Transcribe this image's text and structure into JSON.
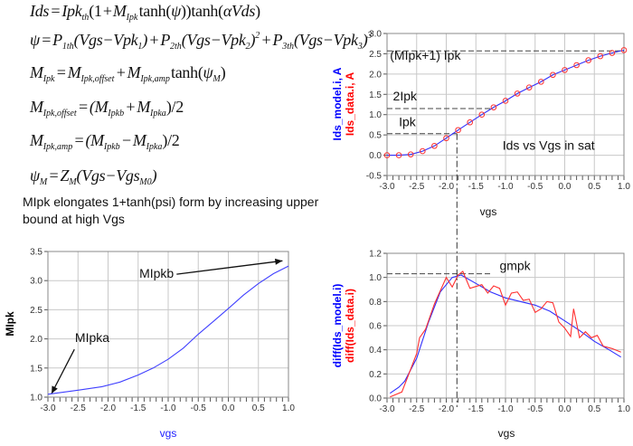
{
  "equations": [
    [
      {
        "t": "Ids"
      },
      {
        "t": " = "
      },
      {
        "t": "Ipk"
      },
      {
        "sub": "th"
      },
      {
        "t": "(1 + ",
        "rm": true
      },
      {
        "t": "M"
      },
      {
        "sub": "Ipk"
      },
      {
        "t": " tanh(",
        "rm": true
      },
      {
        "t": "ψ"
      },
      {
        "t": "))tanh(",
        "rm": true
      },
      {
        "t": "αVds"
      },
      {
        "t": ")",
        "rm": true
      }
    ],
    [
      {
        "t": "ψ"
      },
      {
        "t": " = "
      },
      {
        "t": "P"
      },
      {
        "sub": "1th"
      },
      {
        "t": "(Vgs−Vpk"
      },
      {
        "sub": "1"
      },
      {
        "t": ") + "
      },
      {
        "t": "P"
      },
      {
        "sub": "2th"
      },
      {
        "t": "(Vgs−Vpk"
      },
      {
        "sub": "2"
      },
      {
        "t": ")"
      },
      {
        "sup": "2"
      },
      {
        "t": " + "
      },
      {
        "t": "P"
      },
      {
        "sub": "3th"
      },
      {
        "t": "(Vgs−Vpk"
      },
      {
        "sub": "3"
      },
      {
        "t": ")"
      },
      {
        "sup": "3"
      }
    ],
    [
      {
        "t": "M"
      },
      {
        "sub": "Ipk"
      },
      {
        "t": " = "
      },
      {
        "t": "M"
      },
      {
        "sub": "Ipk,offset"
      },
      {
        "t": " + "
      },
      {
        "t": "M"
      },
      {
        "sub": "Ipk,amp"
      },
      {
        "t": " tanh(",
        "rm": true
      },
      {
        "t": "ψ"
      },
      {
        "sub": "M"
      },
      {
        "t": ")",
        "rm": true
      }
    ],
    [
      {
        "t": "M"
      },
      {
        "sub": "Ipk,offset"
      },
      {
        "t": " = ("
      },
      {
        "t": "M"
      },
      {
        "sub": "Ipkb"
      },
      {
        "t": " + "
      },
      {
        "t": "M"
      },
      {
        "sub": "Ipka"
      },
      {
        "t": ")/2",
        "rm": true
      }
    ],
    [
      {
        "t": "M"
      },
      {
        "sub": "Ipk,amp"
      },
      {
        "t": " = ("
      },
      {
        "t": "M"
      },
      {
        "sub": "Ipkb"
      },
      {
        "t": " − "
      },
      {
        "t": "M"
      },
      {
        "sub": "Ipka"
      },
      {
        "t": ")/2",
        "rm": true
      }
    ],
    [
      {
        "t": "ψ"
      },
      {
        "sub": "M"
      },
      {
        "t": " = "
      },
      {
        "t": "Z"
      },
      {
        "sub": "M"
      },
      {
        "t": "(Vgs−Vgs"
      },
      {
        "sub": "M0"
      },
      {
        "t": ")"
      }
    ]
  ],
  "caption": "MIpk elongates 1+tanh(psi) form by increasing upper bound at high Vgs",
  "colors": {
    "model": "#3030ff",
    "data": "#ff2020",
    "grid": "#c8c8c8",
    "axis": "#555555"
  },
  "chart_data": [
    {
      "id": "ids",
      "type": "line",
      "title": "Ids vs Vgs in sat",
      "xlabel": "vgs",
      "ylabels": [
        {
          "text": "Ids_model.i, A",
          "color": "#0000ff"
        },
        {
          "text": "Ids_data.i, A",
          "color": "#ff0000"
        }
      ],
      "xlim": [
        -3.0,
        1.0
      ],
      "ylim": [
        -0.5,
        3.0
      ],
      "xstep": 0.5,
      "ystep": 0.5,
      "grid": true,
      "xticks": [
        "-3.0",
        "-2.5",
        "-2.0",
        "-1.5",
        "-1.0",
        "-0.5",
        "0.0",
        "0.5",
        "1.0"
      ],
      "yticks": [
        "-0.5",
        "0.0",
        "0.5",
        "1.0",
        "1.5",
        "2.0",
        "2.5",
        "3.0"
      ],
      "x": [
        -3.0,
        -2.8,
        -2.6,
        -2.4,
        -2.2,
        -2.0,
        -1.8,
        -1.6,
        -1.4,
        -1.2,
        -1.0,
        -0.8,
        -0.6,
        -0.4,
        -0.2,
        0.0,
        0.2,
        0.4,
        0.6,
        0.8,
        1.0
      ],
      "series": [
        {
          "name": "Ids_model.i",
          "style": "line",
          "color": "#3030ff",
          "values": [
            0,
            0,
            0.02,
            0.1,
            0.23,
            0.42,
            0.62,
            0.81,
            1.0,
            1.18,
            1.34,
            1.52,
            1.67,
            1.81,
            1.98,
            2.1,
            2.22,
            2.34,
            2.44,
            2.52,
            2.59
          ]
        },
        {
          "name": "Ids_data.i",
          "style": "markers",
          "color": "#ff3030",
          "values": [
            0,
            0,
            0.02,
            0.1,
            0.23,
            0.42,
            0.62,
            0.81,
            1.0,
            1.18,
            1.34,
            1.52,
            1.67,
            1.81,
            1.98,
            2.1,
            2.22,
            2.34,
            2.44,
            2.52,
            2.59
          ]
        }
      ],
      "annotations": [
        {
          "text": "(MIpk+1) Ipk",
          "x": -2.95,
          "y": 2.35,
          "line": {
            "y": 2.57,
            "x0": -3.0,
            "x1": 1.0
          }
        },
        {
          "text": "2Ipk",
          "x": -2.9,
          "y": 1.35,
          "line": {
            "y": 1.15,
            "x0": -3.0,
            "x1": -1.25
          }
        },
        {
          "text": "Ipk",
          "x": -2.8,
          "y": 0.72,
          "line": {
            "y": 0.53,
            "x0": -3.0,
            "x1": -1.82
          }
        }
      ]
    },
    {
      "id": "gm",
      "type": "line",
      "xlabel": "vgs",
      "ylabels": [
        {
          "text": "diff(Ids_model.i)",
          "color": "#0000ff"
        },
        {
          "text": "diff(Ids_data.i)",
          "color": "#ff0000"
        }
      ],
      "xlim": [
        -3.0,
        1.0
      ],
      "ylim": [
        0.0,
        1.2
      ],
      "grid": true,
      "xticks": [
        "-3.0",
        "-2.5",
        "-2.0",
        "-1.5",
        "-1.0",
        "-0.5",
        "0.0",
        "0.5",
        "1.0"
      ],
      "yticks": [
        "0.0",
        "0.2",
        "0.4",
        "0.6",
        "0.8",
        "1.0",
        "1.2"
      ],
      "series": [
        {
          "name": "diff(Ids_model.i)",
          "color": "#3030ff",
          "x": [
            -2.95,
            -2.8,
            -2.7,
            -2.5,
            -2.3,
            -2.1,
            -1.9,
            -1.75,
            -1.5,
            -1.25,
            -1.0,
            -0.5,
            -0.25,
            0.0,
            0.25,
            0.5,
            0.75,
            0.95
          ],
          "values": [
            0.04,
            0.09,
            0.14,
            0.33,
            0.63,
            0.88,
            1.0,
            1.02,
            0.95,
            0.88,
            0.83,
            0.77,
            0.72,
            0.64,
            0.56,
            0.47,
            0.4,
            0.34
          ]
        },
        {
          "name": "diff(Ids_data.i)",
          "color": "#ff3030",
          "x": [
            -2.95,
            -2.75,
            -2.6,
            -2.5,
            -2.45,
            -2.35,
            -2.2,
            -2.0,
            -1.9,
            -1.8,
            -1.72,
            -1.6,
            -1.4,
            -1.3,
            -1.2,
            -1.1,
            -1.0,
            -0.9,
            -0.8,
            -0.7,
            -0.6,
            -0.5,
            -0.4,
            -0.3,
            -0.2,
            -0.1,
            0.0,
            0.1,
            0.15,
            0.25,
            0.35,
            0.45,
            0.55,
            0.65,
            0.8,
            0.95
          ],
          "values": [
            0.01,
            0.05,
            0.24,
            0.37,
            0.5,
            0.57,
            0.78,
            1.0,
            0.92,
            1.02,
            1.05,
            0.91,
            0.94,
            0.87,
            0.93,
            0.91,
            0.77,
            0.87,
            0.88,
            0.81,
            0.82,
            0.71,
            0.74,
            0.8,
            0.79,
            0.63,
            0.58,
            0.51,
            0.74,
            0.5,
            0.55,
            0.5,
            0.52,
            0.43,
            0.41,
            0.38
          ]
        }
      ],
      "annotations": [
        {
          "text": "gmpk",
          "x": -1.1,
          "y": 1.06,
          "line": {
            "y": 1.03,
            "x0": -3.0,
            "x1": -1.25
          }
        }
      ],
      "marker_line": {
        "x": -1.82
      }
    },
    {
      "id": "mipk",
      "type": "line",
      "xlabel": "vgs",
      "ylabels": [
        {
          "text": "MIpk",
          "color": "#000000"
        }
      ],
      "xlim": [
        -3.0,
        1.0
      ],
      "ylim": [
        1.0,
        3.5
      ],
      "grid": true,
      "xticks": [
        "-3.0",
        "-2.5",
        "-2.0",
        "-1.5",
        "-1.0",
        "-0.5",
        "0.0",
        "0.5",
        "1.0"
      ],
      "yticks": [
        "1.0",
        "1.5",
        "2.0",
        "2.5",
        "3.0",
        "3.5"
      ],
      "series": [
        {
          "name": "MIpk",
          "color": "#4040ff",
          "x": [
            -3.0,
            -2.5,
            -2.1,
            -1.8,
            -1.5,
            -1.25,
            -1.0,
            -0.75,
            -0.5,
            -0.25,
            0.0,
            0.25,
            0.5,
            0.75,
            1.0
          ],
          "values": [
            1.05,
            1.12,
            1.18,
            1.26,
            1.38,
            1.5,
            1.65,
            1.84,
            2.08,
            2.3,
            2.52,
            2.75,
            2.95,
            3.12,
            3.25
          ]
        }
      ],
      "annotations": [
        {
          "text": "MIpkb",
          "x": -1.48,
          "y": 3.05,
          "arrow": {
            "from": [
              -0.86,
              3.11
            ],
            "to": [
              0.9,
              3.34
            ]
          }
        },
        {
          "text": "MIpka",
          "x": -2.55,
          "y": 1.95,
          "arrow": {
            "from": [
              -2.56,
              1.82
            ],
            "to": [
              -2.94,
              1.06
            ]
          }
        }
      ]
    }
  ]
}
